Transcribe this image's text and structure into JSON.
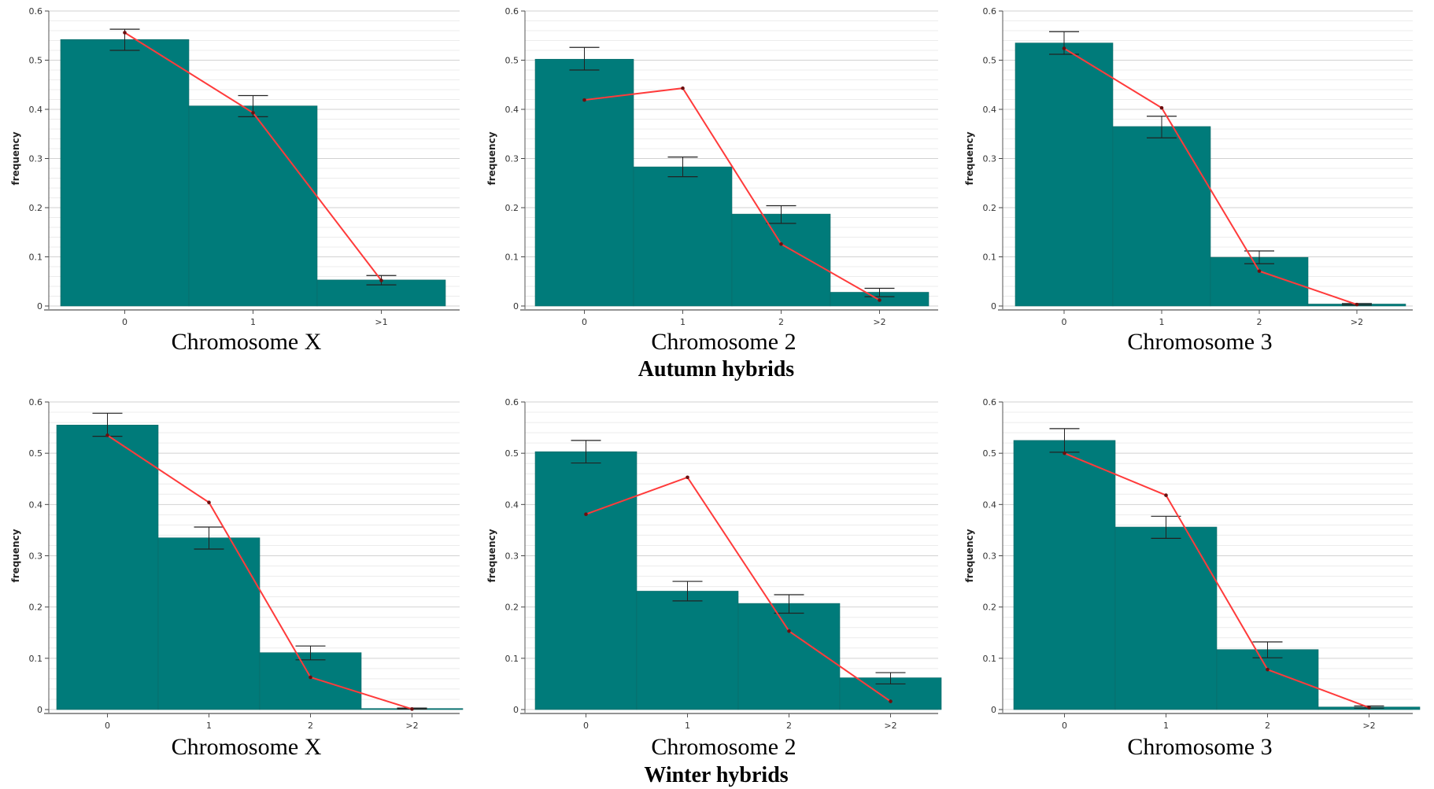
{
  "chart_data": [
    {
      "type": "bar",
      "caption": "Chromosome X",
      "categories": [
        "0",
        "1",
        ">1"
      ],
      "values": [
        0.542,
        0.407,
        0.053
      ],
      "error_bars": [
        [
          0.52,
          0.563
        ],
        [
          0.385,
          0.428
        ],
        [
          0.043,
          0.062
        ]
      ],
      "line": [
        0.556,
        0.393,
        0.052
      ],
      "ylabel": "frequency",
      "ylim": [
        0,
        0.6
      ],
      "yticks": [
        "0",
        "0.1",
        "0.2",
        "0.3",
        "0.4",
        "0.5",
        "0.6"
      ],
      "bar_color": "#007b7a",
      "line_color": "#ff3b3b"
    },
    {
      "type": "bar",
      "caption": "Chromosome 2",
      "categories": [
        "0",
        "1",
        "2",
        ">2"
      ],
      "values": [
        0.502,
        0.283,
        0.187,
        0.028
      ],
      "error_bars": [
        [
          0.48,
          0.526
        ],
        [
          0.263,
          0.303
        ],
        [
          0.168,
          0.204
        ],
        [
          0.019,
          0.036
        ]
      ],
      "line": [
        0.419,
        0.443,
        0.126,
        0.012
      ],
      "ylabel": "frequency",
      "ylim": [
        0,
        0.6
      ],
      "yticks": [
        "0",
        "0.1",
        "0.2",
        "0.3",
        "0.4",
        "0.5",
        "0.6"
      ],
      "bar_color": "#007b7a",
      "line_color": "#ff3b3b"
    },
    {
      "type": "bar",
      "caption": "Chromosome 3",
      "categories": [
        "0",
        "1",
        "2",
        ">2"
      ],
      "values": [
        0.535,
        0.365,
        0.099,
        0.004
      ],
      "error_bars": [
        [
          0.512,
          0.558
        ],
        [
          0.342,
          0.386
        ],
        [
          0.086,
          0.112
        ],
        [
          0.002,
          0.005
        ]
      ],
      "line": [
        0.524,
        0.403,
        0.071,
        0.003
      ],
      "ylabel": "frequency",
      "ylim": [
        0,
        0.6
      ],
      "yticks": [
        "0",
        "0.1",
        "0.2",
        "0.3",
        "0.4",
        "0.5",
        "0.6"
      ],
      "bar_color": "#007b7a",
      "line_color": "#ff3b3b"
    },
    {
      "type": "bar",
      "caption": "Chromosome X",
      "categories": [
        "0",
        "1",
        "2",
        ">2"
      ],
      "values": [
        0.555,
        0.335,
        0.111,
        0.002
      ],
      "error_bars": [
        [
          0.533,
          0.578
        ],
        [
          0.313,
          0.356
        ],
        [
          0.097,
          0.124
        ],
        [
          0.001,
          0.003
        ]
      ],
      "line": [
        0.535,
        0.404,
        0.063,
        0.001
      ],
      "ylabel": "frequency",
      "ylim": [
        0,
        0.6
      ],
      "yticks": [
        "0",
        "0.1",
        "0.2",
        "0.3",
        "0.4",
        "0.5",
        "0.6"
      ],
      "bar_color": "#007b7a",
      "line_color": "#ff3b3b"
    },
    {
      "type": "bar",
      "caption": "Chromosome 2",
      "categories": [
        "0",
        "1",
        "2",
        ">2"
      ],
      "values": [
        0.503,
        0.231,
        0.207,
        0.062
      ],
      "error_bars": [
        [
          0.481,
          0.525
        ],
        [
          0.212,
          0.25
        ],
        [
          0.188,
          0.224
        ],
        [
          0.05,
          0.072
        ]
      ],
      "line": [
        0.381,
        0.453,
        0.153,
        0.016
      ],
      "ylabel": "frequency",
      "ylim": [
        0,
        0.6
      ],
      "yticks": [
        "0",
        "0.1",
        "0.2",
        "0.3",
        "0.4",
        "0.5",
        "0.6"
      ],
      "bar_color": "#007b7a",
      "line_color": "#ff3b3b"
    },
    {
      "type": "bar",
      "caption": "Chromosome 3",
      "categories": [
        "0",
        "1",
        "2",
        ">2"
      ],
      "values": [
        0.525,
        0.356,
        0.117,
        0.005
      ],
      "error_bars": [
        [
          0.502,
          0.548
        ],
        [
          0.334,
          0.377
        ],
        [
          0.101,
          0.132
        ],
        [
          0.003,
          0.007
        ]
      ],
      "line": [
        0.5,
        0.418,
        0.078,
        0.004
      ],
      "ylabel": "frequency",
      "ylim": [
        0,
        0.6
      ],
      "yticks": [
        "0",
        "0.1",
        "0.2",
        "0.3",
        "0.4",
        "0.5",
        "0.6"
      ],
      "bar_color": "#007b7a",
      "line_color": "#ff3b3b"
    }
  ],
  "group_labels": [
    "Autumn hybrids",
    "Winter hybrids"
  ]
}
